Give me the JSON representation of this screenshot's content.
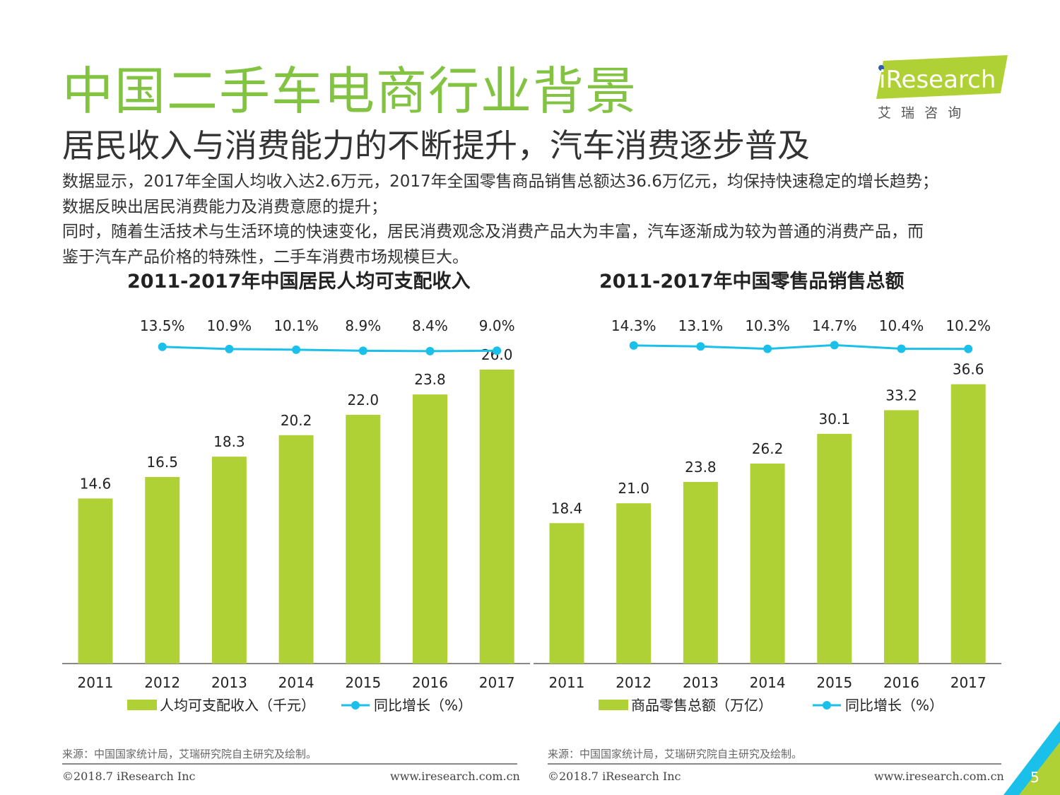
{
  "header": {
    "title": "中国二手车电商行业背景",
    "subtitle": "居民收入与消费能力的不断提升，汽车消费逐步普及",
    "logo_text": "iResearch",
    "logo_sub": "艾 瑞 咨 询"
  },
  "body_text": [
    "数据显示，2017年全国人均收入达2.6万元，2017年全国零售商品销售总额达36.6万亿元，均保持快速稳定的增长趋势；",
    "数据反映出居民消费能力及消费意愿的提升；",
    "同时，随着生活技术与生活环境的快速变化，居民消费观念及消费产品大为丰富，汽车逐渐成为较为普通的消费产品，而",
    "鉴于汽车产品价格的特殊性，二手车消费市场规模巨大。"
  ],
  "colors": {
    "bar": "#b0d136",
    "line": "#1ac0ea",
    "title_green": "#82c341"
  },
  "chart_data": [
    {
      "type": "bar",
      "title": "2011-2017年中国居民人均可支配收入",
      "categories": [
        "2011",
        "2012",
        "2013",
        "2014",
        "2015",
        "2016",
        "2017"
      ],
      "series": [
        {
          "name": "人均可支配收入（千元）",
          "type": "bar",
          "values": [
            14.6,
            16.5,
            18.3,
            20.2,
            22.0,
            23.8,
            26.0
          ],
          "labels": [
            "14.6",
            "16.5",
            "18.3",
            "20.2",
            "22.0",
            "23.8",
            "26.0"
          ]
        },
        {
          "name": "同比增长（%）",
          "type": "line",
          "values": [
            13.5,
            10.9,
            10.1,
            8.9,
            8.4,
            9.0
          ],
          "x": [
            "2012",
            "2013",
            "2014",
            "2015",
            "2016",
            "2017"
          ],
          "labels": [
            "13.5%",
            "10.9%",
            "10.1%",
            "8.9%",
            "8.4%",
            "9.0%"
          ]
        }
      ],
      "xlabel": "",
      "ylabel": "",
      "legend": "bottom",
      "grid": false,
      "source": "来源：中国国家统计局，艾瑞研究院自主研究及绘制。"
    },
    {
      "type": "bar",
      "title": "2011-2017年中国零售品销售总额",
      "categories": [
        "2011",
        "2012",
        "2013",
        "2014",
        "2015",
        "2016",
        "2017"
      ],
      "series": [
        {
          "name": "商品零售总额（万亿）",
          "type": "bar",
          "values": [
            18.4,
            21.0,
            23.8,
            26.2,
            30.1,
            33.2,
            36.6
          ],
          "labels": [
            "18.4",
            "21.0",
            "23.8",
            "26.2",
            "30.1",
            "33.2",
            "36.6"
          ]
        },
        {
          "name": "同比增长（%）",
          "type": "line",
          "values": [
            14.3,
            13.1,
            10.3,
            14.7,
            10.4,
            10.2
          ],
          "x": [
            "2012",
            "2013",
            "2014",
            "2015",
            "2016",
            "2017"
          ],
          "labels": [
            "14.3%",
            "13.1%",
            "10.3%",
            "14.7%",
            "10.4%",
            "10.2%"
          ]
        }
      ],
      "xlabel": "",
      "ylabel": "",
      "legend": "bottom",
      "grid": false,
      "source": "来源：中国国家统计局，艾瑞研究院自主研究及绘制。"
    }
  ],
  "footer": {
    "copyright": "©2018.7 iResearch Inc",
    "url": "www.iresearch.com.cn",
    "page_number": "5"
  }
}
